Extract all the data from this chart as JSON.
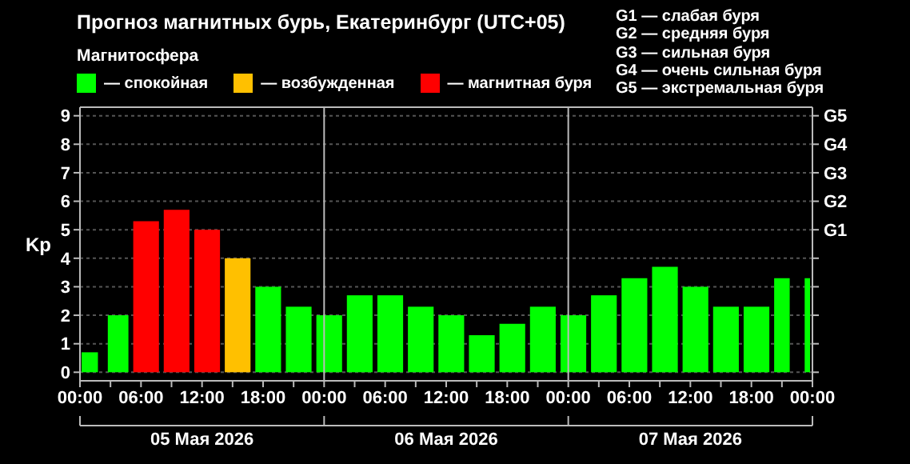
{
  "chart_data": {
    "type": "bar",
    "title": "Прогноз магнитных бурь, Екатеринбург (UTC+05)",
    "legend_title": "Магнитосфера",
    "ylabel": "Kp",
    "x": [
      "2026-05-05T01:00",
      "2026-05-05T03:30",
      "2026-05-05T06:30",
      "2026-05-05T09:30",
      "2026-05-05T12:30",
      "2026-05-05T15:30",
      "2026-05-05T18:30",
      "2026-05-05T21:30",
      "2026-05-06T00:30",
      "2026-05-06T03:30",
      "2026-05-06T06:30",
      "2026-05-06T09:30",
      "2026-05-06T12:30",
      "2026-05-06T15:30",
      "2026-05-06T18:30",
      "2026-05-06T21:30",
      "2026-05-07T00:30",
      "2026-05-07T03:30",
      "2026-05-07T06:30",
      "2026-05-07T09:30",
      "2026-05-07T12:30",
      "2026-05-07T15:30",
      "2026-05-07T18:30",
      "2026-05-07T21:30",
      "2026-05-07T23:30"
    ],
    "series": [
      {
        "name": "— спокойная",
        "color": "#00ff00",
        "values": [
          0.7,
          2,
          null,
          null,
          null,
          null,
          3,
          2.3,
          2,
          2.7,
          2.7,
          2.3,
          2,
          1.3,
          1.7,
          2.3,
          2,
          2.7,
          3.3,
          3.7,
          3,
          2.3,
          2.3,
          3.3,
          3.3
        ]
      },
      {
        "name": "— возбужденная",
        "color": "#ffc000",
        "values": [
          null,
          null,
          null,
          null,
          null,
          4,
          null,
          null,
          null,
          null,
          null,
          null,
          null,
          null,
          null,
          null,
          null,
          null,
          null,
          null,
          null,
          null,
          null,
          null,
          null
        ]
      },
      {
        "name": "— магнитная буря",
        "color": "#ff0000",
        "values": [
          null,
          null,
          5.3,
          5.7,
          5,
          null,
          null,
          null,
          null,
          null,
          null,
          null,
          null,
          null,
          null,
          null,
          null,
          null,
          null,
          null,
          null,
          null,
          null,
          null,
          null
        ]
      }
    ],
    "xlim": [
      "2026-05-05T00:00",
      "2026-05-08T00:00"
    ],
    "xticks": [
      {
        "value": "2026-05-05T00:00",
        "label": "00:00"
      },
      {
        "value": "2026-05-05T03:00",
        "label": null
      },
      {
        "value": "2026-05-05T06:00",
        "label": "06:00"
      },
      {
        "value": "2026-05-05T09:00",
        "label": null
      },
      {
        "value": "2026-05-05T12:00",
        "label": "12:00"
      },
      {
        "value": "2026-05-05T15:00",
        "label": null
      },
      {
        "value": "2026-05-05T18:00",
        "label": "18:00"
      },
      {
        "value": "2026-05-05T21:00",
        "label": null
      },
      {
        "value": "2026-05-06T00:00",
        "label": "00:00"
      },
      {
        "value": "2026-05-06T03:00",
        "label": null
      },
      {
        "value": "2026-05-06T06:00",
        "label": "06:00"
      },
      {
        "value": "2026-05-06T09:00",
        "label": null
      },
      {
        "value": "2026-05-06T12:00",
        "label": "12:00"
      },
      {
        "value": "2026-05-06T15:00",
        "label": null
      },
      {
        "value": "2026-05-06T18:00",
        "label": "18:00"
      },
      {
        "value": "2026-05-06T21:00",
        "label": null
      },
      {
        "value": "2026-05-07T00:00",
        "label": "00:00"
      },
      {
        "value": "2026-05-07T03:00",
        "label": null
      },
      {
        "value": "2026-05-07T06:00",
        "label": "06:00"
      },
      {
        "value": "2026-05-07T09:00",
        "label": null
      },
      {
        "value": "2026-05-07T12:00",
        "label": "12:00"
      },
      {
        "value": "2026-05-07T15:00",
        "label": null
      },
      {
        "value": "2026-05-07T18:00",
        "label": "18:00"
      },
      {
        "value": "2026-05-07T21:00",
        "label": null
      },
      {
        "value": "2026-05-08T00:00",
        "label": "00:00"
      }
    ],
    "ylim": [
      -0.3,
      9.3
    ],
    "yticks": [
      0,
      1,
      2,
      3,
      4,
      5,
      6,
      7,
      8,
      9
    ],
    "grid": "y",
    "legend": "top",
    "ref_lines": [
      {
        "axis": "x",
        "value": "2026-05-06T00:00",
        "color": "#bbbbbb"
      },
      {
        "axis": "x",
        "value": "2026-05-07T00:00",
        "color": "#bbbbbb"
      }
    ],
    "annotations": [
      "G1 — слабая буря",
      "G2 — средняя буря",
      "G3 — сильная буря",
      "G4 — очень сильная буря",
      "G5 — экстремальная буря",
      "G5",
      "G4",
      "G3",
      "G2",
      "G1",
      "05 Мая 2026",
      "06 Мая 2026",
      "07 Мая 2026"
    ]
  }
}
